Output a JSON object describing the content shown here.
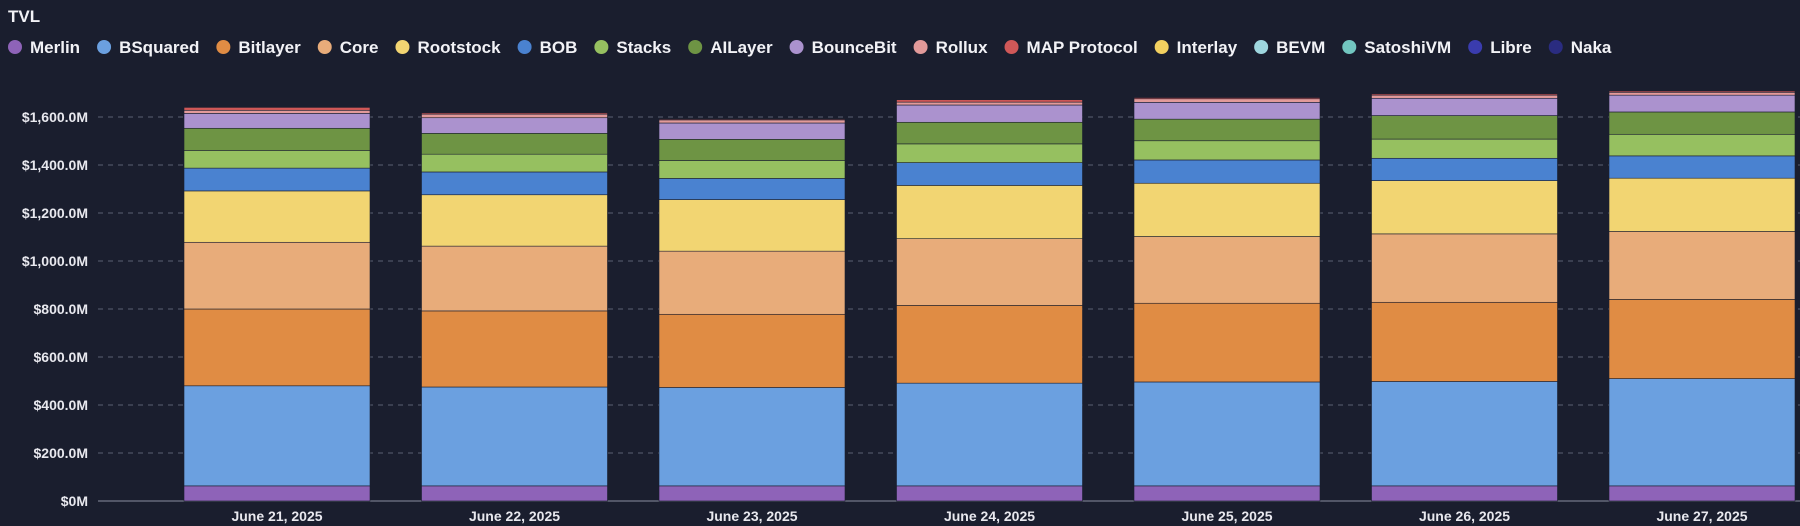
{
  "chart_data": {
    "type": "bar",
    "stacked": true,
    "title": "TVL",
    "xlabel": "",
    "ylabel": "",
    "ylim": [
      0,
      1800
    ],
    "yticks": [
      0,
      200,
      400,
      600,
      800,
      1000,
      1200,
      1400,
      1600
    ],
    "ytick_labels": [
      "$0M",
      "$200.0M",
      "$400.0M",
      "$600.0M",
      "$800.0M",
      "$1,000.0M",
      "$1,200.0M",
      "$1,400.0M",
      "$1,600.0M"
    ],
    "grid": true,
    "legend_position": "top-left",
    "categories": [
      "June 21, 2025",
      "June 22, 2025",
      "June 23, 2025",
      "June 24, 2025",
      "June 25, 2025",
      "June 26, 2025",
      "June 27, 2025"
    ],
    "series": [
      {
        "name": "Merlin",
        "color": "#8e63b8",
        "values": [
          63,
          63,
          63,
          63,
          63,
          63,
          63
        ]
      },
      {
        "name": "BSquared",
        "color": "#6ba0e0",
        "values": [
          417,
          412,
          410,
          428,
          433,
          435,
          447
        ]
      },
      {
        "name": "Bitlayer",
        "color": "#e08c44",
        "values": [
          320,
          317,
          305,
          324,
          328,
          330,
          330
        ]
      },
      {
        "name": "Core",
        "color": "#e8ac7a",
        "values": [
          278,
          270,
          263,
          278,
          278,
          285,
          283
        ]
      },
      {
        "name": "Rootstock",
        "color": "#f2d572",
        "values": [
          214,
          214,
          215,
          222,
          222,
          222,
          222
        ]
      },
      {
        "name": "BOB",
        "color": "#4a82d0",
        "values": [
          95,
          95,
          88,
          95,
          97,
          93,
          93
        ]
      },
      {
        "name": "Stacks",
        "color": "#96c060",
        "values": [
          74,
          74,
          75,
          78,
          80,
          80,
          90
        ]
      },
      {
        "name": "AILayer",
        "color": "#6e9444",
        "values": [
          92,
          87,
          88,
          90,
          90,
          98,
          93
        ]
      },
      {
        "name": "BounceBit",
        "color": "#ab92ce",
        "values": [
          62,
          65,
          68,
          72,
          70,
          72,
          70
        ]
      },
      {
        "name": "Rollux",
        "color": "#e29a9a",
        "values": [
          13,
          15,
          13,
          12,
          15,
          13,
          12
        ]
      },
      {
        "name": "MAP Protocol",
        "color": "#d05858",
        "values": [
          12,
          5,
          4,
          10,
          5,
          5,
          5
        ]
      },
      {
        "name": "Interlay",
        "color": "#f2d060",
        "values": [
          0,
          0,
          2,
          0,
          0,
          0,
          0
        ]
      },
      {
        "name": "BEVM",
        "color": "#9ed6de",
        "values": [
          0,
          0,
          0,
          0,
          0,
          0,
          0
        ]
      },
      {
        "name": "SatoshiVM",
        "color": "#72c6c0",
        "values": [
          0,
          0,
          0,
          0,
          0,
          0,
          0
        ]
      },
      {
        "name": "Libre",
        "color": "#3a3cae",
        "values": [
          0,
          0,
          0,
          0,
          0,
          0,
          0
        ]
      },
      {
        "name": "Naka",
        "color": "#2a2c80",
        "values": [
          0,
          0,
          0,
          0,
          0,
          0,
          0
        ]
      }
    ]
  }
}
